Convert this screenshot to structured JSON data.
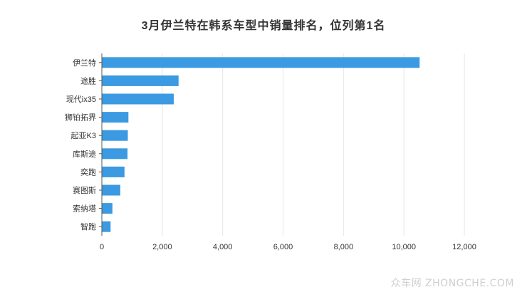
{
  "chart_data": {
    "type": "bar",
    "orientation": "horizontal",
    "title": "3月伊兰特在韩系车型中销量排名，位列第1名",
    "categories": [
      "伊兰特",
      "途胜",
      "现代ix35",
      "狮铂拓界",
      "起亚K3",
      "库斯途",
      "奕跑",
      "赛图斯",
      "索纳塔",
      "智跑"
    ],
    "values": [
      10520,
      2540,
      2380,
      880,
      860,
      850,
      750,
      610,
      350,
      290
    ],
    "xlim": [
      0,
      12000
    ],
    "xticks": [
      0,
      2000,
      4000,
      6000,
      8000,
      10000,
      12000
    ],
    "xtick_labels": [
      "0",
      "2,000",
      "4,000",
      "6,000",
      "8,000",
      "10,000",
      "12,000"
    ],
    "xlabel": "",
    "ylabel": "",
    "grid": "vertical",
    "bar_color": "#3b9ae1"
  },
  "watermark": "众车网 ZHONGCHE.COM"
}
